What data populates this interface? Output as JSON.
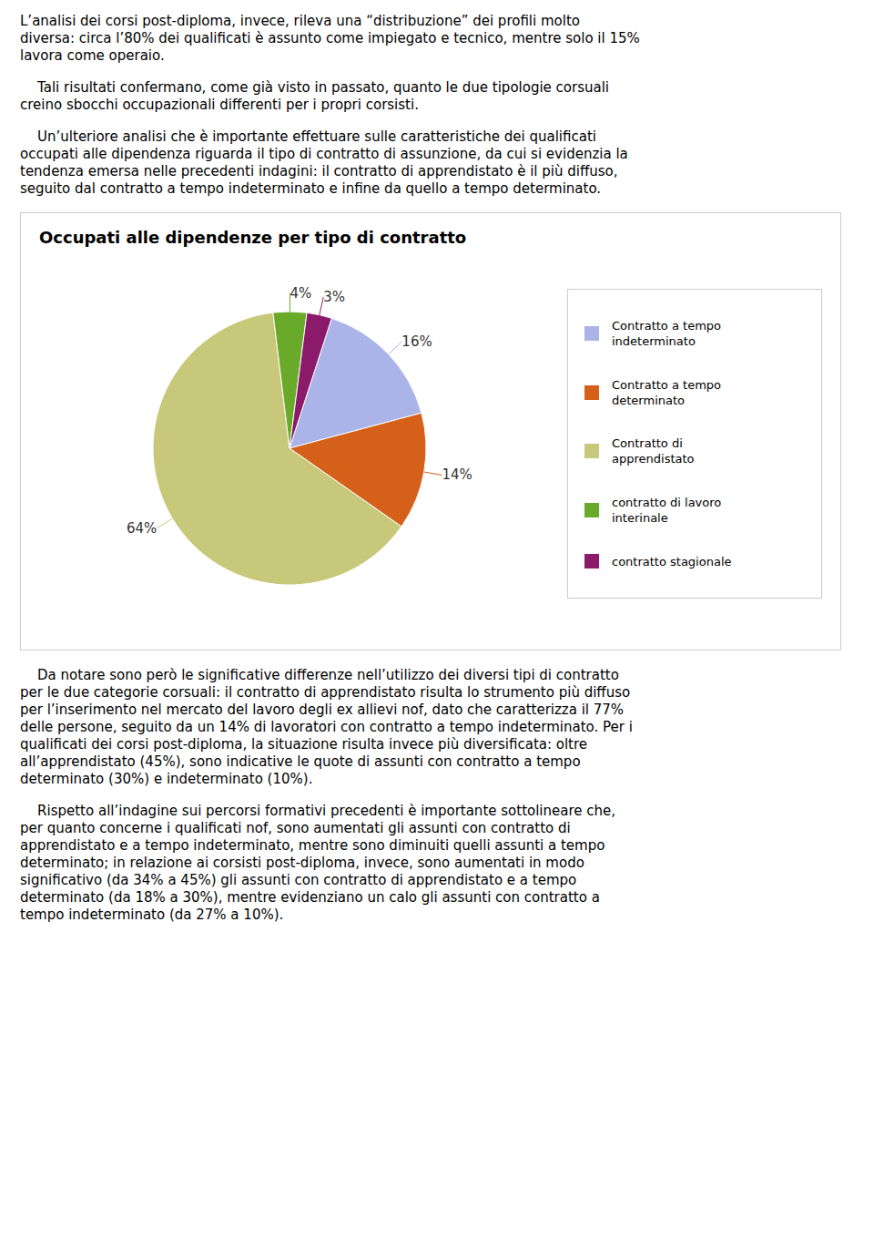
{
  "paragraphs_before": [
    [
      "L’analisi dei corsi post-diploma, invece, rileva una “distribuzione” dei profili molto",
      "diversa: circa l’80% dei qualificati è assunto come impiegato e tecnico, mentre solo il 15%",
      "lavora come operaio."
    ],
    [
      "    Tali risultati confermano, come già visto in passato, quanto le due tipologie corsuali",
      "creino sbocchi occupazionali differenti per i propri corsisti."
    ],
    [
      "    Un’ulteriore analisi che è importante effettuare sulle caratteristiche dei qualificati",
      "occupati alle dipendenza riguarda il tipo di contratto di assunzione, da cui si evidenzia la",
      "tendenza emersa nelle precedenti indagini: il contratto di apprendistato è il più diffuso,",
      "seguito dal contratto a tempo indeterminato e infine da quello a tempo determinato."
    ]
  ],
  "chart_data": {
    "type": "pie",
    "title": "Occupati alle dipendenze per tipo di contratto",
    "categories": [
      "Contratto a tempo\nindeterminato",
      "Contratto a tempo\ndeterminato",
      "Contratto di\napprendistato",
      "contratto di lavoro\ninterinale",
      "contratto stagionale"
    ],
    "values": [
      16,
      14,
      64,
      4,
      3
    ],
    "value_labels": [
      "16%",
      "14%",
      "64%",
      "4%",
      "3%"
    ],
    "colors": [
      "#aab4e8",
      "#d4601a",
      "#c8c87a",
      "#6aaa2a",
      "#8b1a6b"
    ],
    "data_labels": true,
    "legend": "right"
  },
  "paragraphs_after": [
    [
      "    Da notare sono però le significative differenze nell’utilizzo dei diversi tipi di contratto",
      "per le due categorie corsuali: il contratto di apprendistato risulta lo strumento più diffuso",
      "per l’inserimento nel mercato del lavoro degli ex allievi nof, dato che caratterizza il 77%",
      "delle persone, seguito da un 14% di lavoratori con contratto a tempo indeterminato. Per i",
      "qualificati dei corsi post-diploma, la situazione risulta invece più diversificata: oltre",
      "all’apprendistato (45%), sono indicative le quote di assunti con contratto a tempo",
      "determinato (30%) e indeterminato (10%)."
    ],
    [
      "    Rispetto all’indagine sui percorsi formativi precedenti è importante sottolineare che,",
      "per quanto concerne i qualificati nof, sono aumentati gli assunti con contratto di",
      "apprendistato e a tempo indeterminato, mentre sono diminuiti quelli assunti a tempo",
      "determinato; in relazione ai corsisti post-diploma, invece, sono aumentati in modo",
      "significativo (da 34% a 45%) gli assunti con contratto di apprendistato e a tempo",
      "determinato (da 18% a 30%), mentre evidenziano un calo gli assunti con contratto a",
      "tempo indeterminato (da 27% a 10%)."
    ]
  ]
}
